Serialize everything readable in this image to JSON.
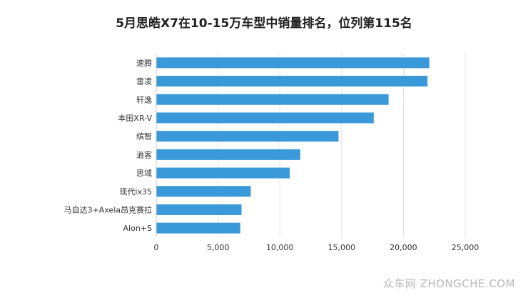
{
  "chart_data": {
    "type": "bar",
    "orientation": "horizontal",
    "title": "5月思皓X7在10-15万车型中销量排名，位列第115名",
    "categories": [
      "速腾",
      "雷凌",
      "轩逸",
      "本田XR-V",
      "缤智",
      "逍客",
      "思域",
      "现代ix35",
      "马自达3+Axela昂克赛拉",
      "Aion+S"
    ],
    "values": [
      22100,
      21950,
      18800,
      17600,
      14750,
      11650,
      10800,
      7650,
      6900,
      6800
    ],
    "xlim": [
      0,
      25000
    ],
    "xticks": [
      0,
      5000,
      10000,
      15000,
      20000,
      25000
    ],
    "xtick_labels": [
      "0",
      "5,000",
      "10,000",
      "15,000",
      "20,000",
      "25,000"
    ],
    "xlabel": "",
    "ylabel": "",
    "grid": true,
    "bar_color": "#3a9ad9"
  },
  "watermark": "众车网 ZHONGCHE.COM"
}
